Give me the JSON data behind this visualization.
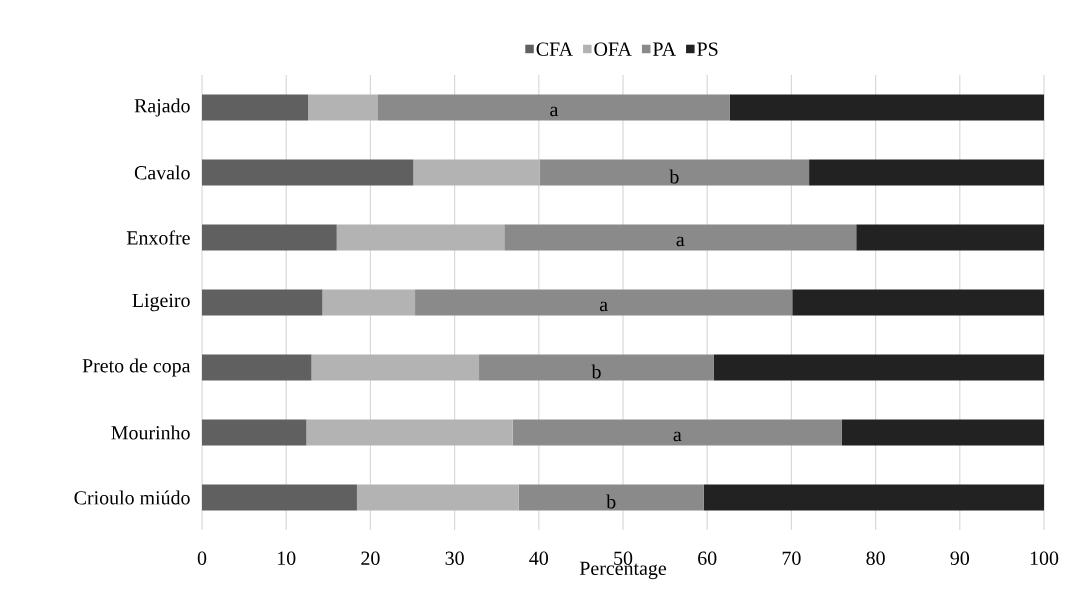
{
  "chart_data": {
    "type": "bar",
    "orientation": "horizontal",
    "stacked": true,
    "categories": [
      "Rajado",
      "Cavalo",
      "Enxofre",
      "Ligeiro",
      "Preto de copa",
      "Mourinho",
      "Crioulo miúdo"
    ],
    "series": [
      {
        "name": "CFA",
        "color": "#606060",
        "values": [
          12.6,
          25.1,
          16.0,
          14.3,
          13.0,
          12.4,
          18.4
        ]
      },
      {
        "name": "OFA",
        "color": "#b3b3b3",
        "values": [
          8.3,
          15.0,
          19.9,
          11.0,
          19.9,
          24.5,
          19.2
        ]
      },
      {
        "name": "PA",
        "color": "#8a8a8a",
        "values": [
          41.8,
          32.0,
          41.8,
          44.8,
          27.9,
          39.1,
          22.0
        ]
      },
      {
        "name": "PS",
        "color": "#222222",
        "values": [
          37.3,
          27.9,
          22.3,
          29.9,
          39.2,
          24.0,
          40.4
        ]
      }
    ],
    "xlabel": "Percentage",
    "xlim": [
      0,
      100
    ],
    "xticks": [
      0,
      10,
      20,
      30,
      40,
      50,
      60,
      70,
      80,
      90,
      100
    ],
    "grid": "x",
    "legend": "top",
    "annotations": [
      "a",
      "b",
      "a",
      "a",
      "b",
      "a",
      "b"
    ]
  }
}
